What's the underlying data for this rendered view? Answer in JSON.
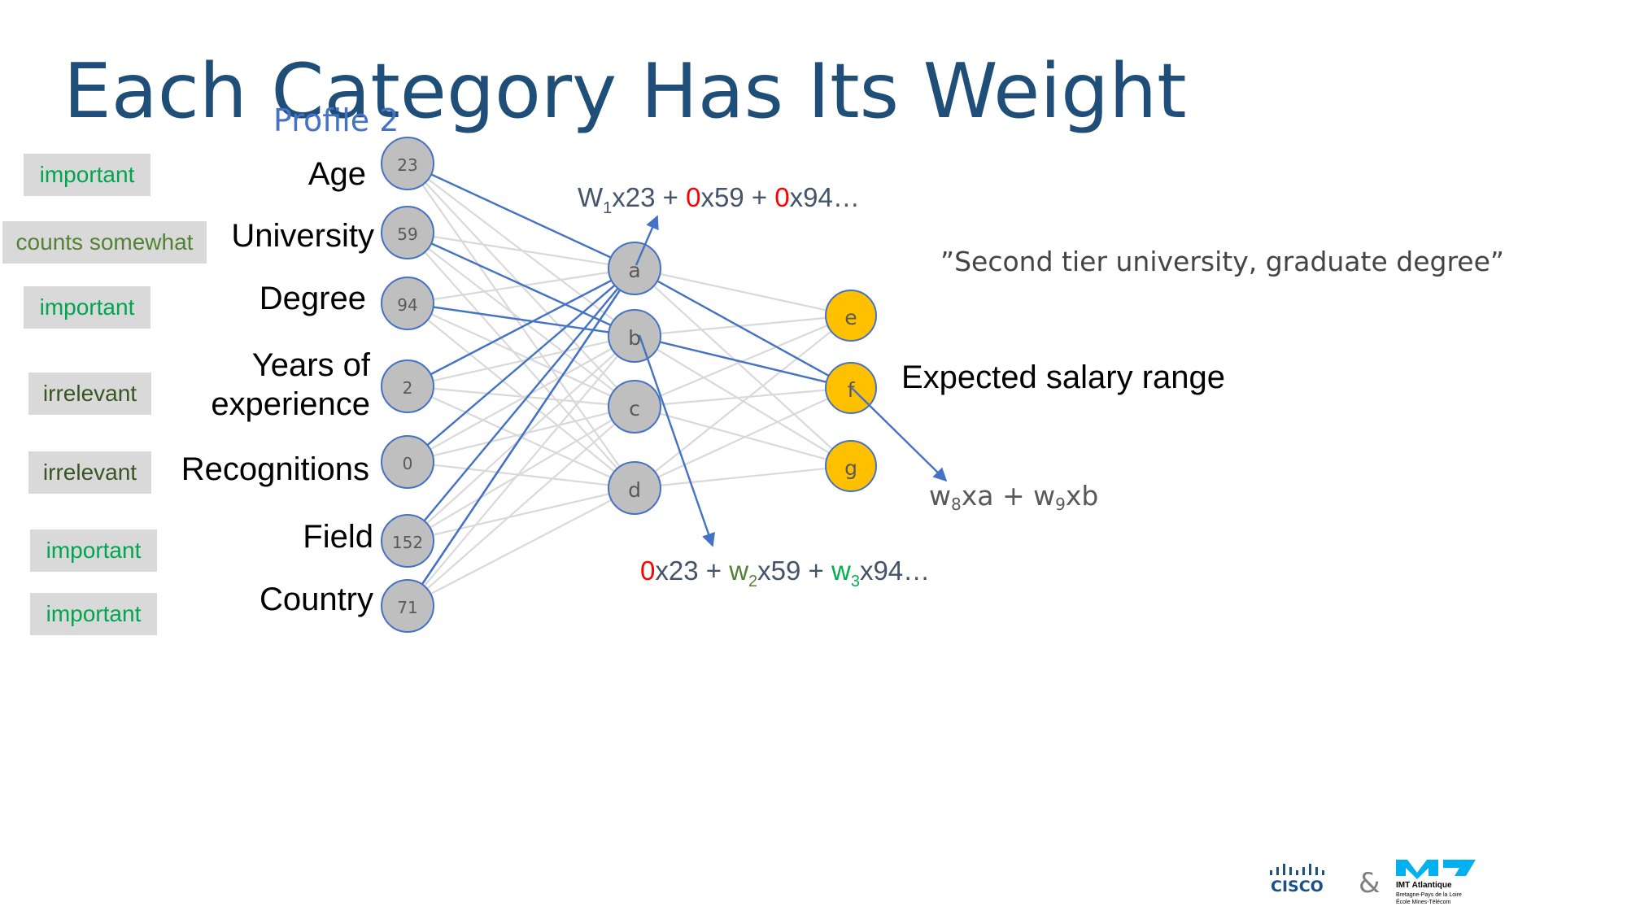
{
  "slide": {
    "title": "Each Category Has Its Weight",
    "profile_label": "Profile 2"
  },
  "tags": [
    "important",
    "counts somewhat",
    "important",
    "irrelevant",
    "irrelevant",
    "important",
    "important"
  ],
  "features": [
    {
      "label": "Age",
      "value": "23"
    },
    {
      "label": "University",
      "value": "59"
    },
    {
      "label": "Degree",
      "value": "94"
    },
    {
      "label": "Years of\nexperience",
      "value": "2"
    },
    {
      "label": "Recognitions",
      "value": "0"
    },
    {
      "label": "Field",
      "value": "152"
    },
    {
      "label": "Country",
      "value": "71"
    }
  ],
  "hidden_nodes": [
    "a",
    "b",
    "c",
    "d"
  ],
  "output_nodes": [
    "e",
    "f",
    "g"
  ],
  "formula_top": {
    "w": "W",
    "sub1": "1",
    "t1": "x23 + ",
    "z1": "0",
    "t2": "x59 + ",
    "z2": "0",
    "t3": "x94…"
  },
  "formula_bottom": {
    "z0": "0",
    "t1": "x23 + ",
    "w2": "w",
    "sub2": "2",
    "t2": "x59 + ",
    "w3": "w",
    "sub3": "3",
    "t3": "x94…"
  },
  "quote": "”Second tier university, graduate degree”",
  "output_label": "Expected salary range",
  "weight_formula": {
    "w8": "w",
    "sub8": "8",
    "t1": "xa + ",
    "w9": "w",
    "sub9": "9",
    "t2": "xb"
  },
  "logos": {
    "cisco": "CISCO",
    "amp": "&",
    "imt_name": "IMT Atlantique",
    "imt_sub1": "Bretagne-Pays de la Loire",
    "imt_sub2": "École Mines-Télécom"
  },
  "colors": {
    "title": "#1f4e79",
    "input_node": "#bfbfbf",
    "output_node": "#ffc000",
    "node_border": "#4472c4",
    "edge_gray": "#d9d9d9",
    "edge_blue": "#4472c4",
    "red": "#ff0000",
    "green": "#00b050"
  }
}
